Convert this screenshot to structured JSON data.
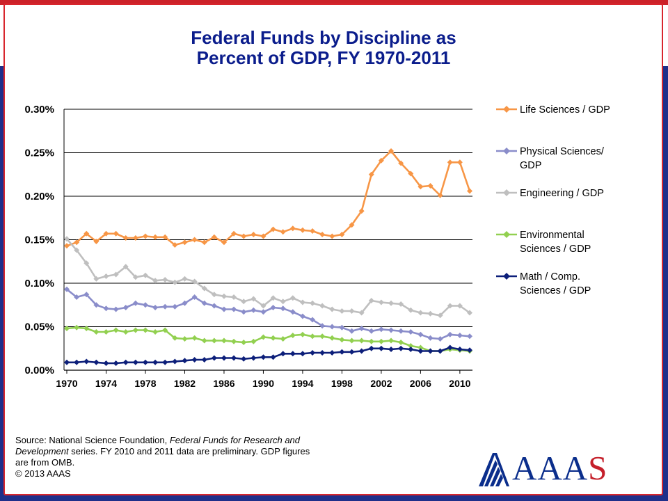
{
  "title": "Federal Funds by Discipline as Percent of GDP, FY 1970-2011",
  "title_lines": [
    "Federal Funds by Discipline as",
    "Percent of GDP, FY 1970-2011"
  ],
  "chart_data": {
    "type": "line",
    "title": "Federal Funds by Discipline as Percent of GDP, FY 1970-2011",
    "xlabel": "",
    "ylabel": "",
    "x": [
      1970,
      1971,
      1972,
      1973,
      1974,
      1975,
      1976,
      1977,
      1978,
      1979,
      1980,
      1981,
      1982,
      1983,
      1984,
      1985,
      1986,
      1987,
      1988,
      1989,
      1990,
      1991,
      1992,
      1993,
      1994,
      1995,
      1996,
      1997,
      1998,
      1999,
      2000,
      2001,
      2002,
      2003,
      2004,
      2005,
      2006,
      2007,
      2008,
      2009,
      2010,
      2011
    ],
    "xticks": [
      "1970",
      "1974",
      "1978",
      "1982",
      "1986",
      "1990",
      "1994",
      "1998",
      "2002",
      "2006",
      "2010"
    ],
    "yticks": [
      "0.00%",
      "0.05%",
      "0.10%",
      "0.15%",
      "0.20%",
      "0.25%",
      "0.30%"
    ],
    "ylim": [
      0,
      0.3
    ],
    "grid": "horizontal",
    "legend_position": "right",
    "series": [
      {
        "name": "Life Sciences / GDP",
        "color": "#f79646",
        "values": [
          0.143,
          0.147,
          0.157,
          0.148,
          0.157,
          0.157,
          0.152,
          0.152,
          0.154,
          0.153,
          0.153,
          0.144,
          0.147,
          0.15,
          0.147,
          0.153,
          0.147,
          0.157,
          0.154,
          0.156,
          0.154,
          0.162,
          0.159,
          0.163,
          0.161,
          0.16,
          0.156,
          0.154,
          0.156,
          0.167,
          0.183,
          0.225,
          0.241,
          0.252,
          0.238,
          0.226,
          0.211,
          0.212,
          0.201,
          0.239,
          0.239,
          0.206
        ]
      },
      {
        "name": "Physical Sciences/ GDP",
        "color": "#8a8dca",
        "values": [
          0.093,
          0.084,
          0.087,
          0.075,
          0.071,
          0.07,
          0.072,
          0.077,
          0.075,
          0.072,
          0.073,
          0.073,
          0.077,
          0.084,
          0.077,
          0.074,
          0.07,
          0.07,
          0.067,
          0.069,
          0.067,
          0.072,
          0.071,
          0.067,
          0.062,
          0.058,
          0.051,
          0.05,
          0.049,
          0.045,
          0.048,
          0.045,
          0.047,
          0.046,
          0.045,
          0.044,
          0.041,
          0.037,
          0.036,
          0.041,
          0.04,
          0.039
        ]
      },
      {
        "name": "Engineering / GDP",
        "color": "#bfbfbf",
        "values": [
          0.151,
          0.138,
          0.123,
          0.105,
          0.108,
          0.11,
          0.119,
          0.107,
          0.109,
          0.103,
          0.104,
          0.101,
          0.105,
          0.102,
          0.094,
          0.087,
          0.085,
          0.084,
          0.079,
          0.082,
          0.074,
          0.083,
          0.079,
          0.083,
          0.078,
          0.077,
          0.074,
          0.07,
          0.068,
          0.068,
          0.066,
          0.08,
          0.078,
          0.077,
          0.076,
          0.069,
          0.066,
          0.065,
          0.063,
          0.074,
          0.074,
          0.066
        ]
      },
      {
        "name": "Environmental Sciences / GDP",
        "color": "#92d050",
        "values": [
          0.048,
          0.049,
          0.048,
          0.044,
          0.044,
          0.046,
          0.044,
          0.046,
          0.046,
          0.044,
          0.046,
          0.037,
          0.036,
          0.037,
          0.034,
          0.034,
          0.034,
          0.033,
          0.032,
          0.033,
          0.038,
          0.037,
          0.036,
          0.04,
          0.041,
          0.039,
          0.039,
          0.037,
          0.035,
          0.034,
          0.034,
          0.033,
          0.033,
          0.034,
          0.032,
          0.028,
          0.026,
          0.022,
          0.022,
          0.024,
          0.023,
          0.022
        ]
      },
      {
        "name": "Math / Comp. Sciences / GDP",
        "color": "#0d1f7a",
        "values": [
          0.009,
          0.009,
          0.01,
          0.009,
          0.008,
          0.008,
          0.009,
          0.009,
          0.009,
          0.009,
          0.009,
          0.01,
          0.011,
          0.012,
          0.012,
          0.014,
          0.014,
          0.014,
          0.013,
          0.014,
          0.015,
          0.015,
          0.019,
          0.019,
          0.019,
          0.02,
          0.02,
          0.02,
          0.021,
          0.021,
          0.022,
          0.025,
          0.025,
          0.024,
          0.025,
          0.024,
          0.022,
          0.022,
          0.022,
          0.026,
          0.024,
          0.023
        ]
      }
    ]
  },
  "legend": [
    {
      "label_lines": [
        "Life Sciences / GDP"
      ]
    },
    {
      "label_lines": [
        "Physical Sciences/",
        "GDP"
      ]
    },
    {
      "label_lines": [
        "Engineering / GDP"
      ]
    },
    {
      "label_lines": [
        "Environmental",
        "Sciences / GDP"
      ]
    },
    {
      "label_lines": [
        "Math / Comp.",
        "Sciences / GDP"
      ]
    }
  ],
  "source": {
    "prefix": "Source: National Science Foundation, ",
    "title_italic_1": "Federal Funds for Research and",
    "title_italic_2": "Development",
    "suffix_2": " series. FY 2010 and 2011 data are preliminary. GDP figures",
    "line3": "are from OMB.",
    "line4": "© 2013 AAAS"
  },
  "logo": {
    "text_main": "AAA",
    "text_last": "S",
    "colors": {
      "blue": "#0b2e8c",
      "red": "#c5202b"
    }
  }
}
